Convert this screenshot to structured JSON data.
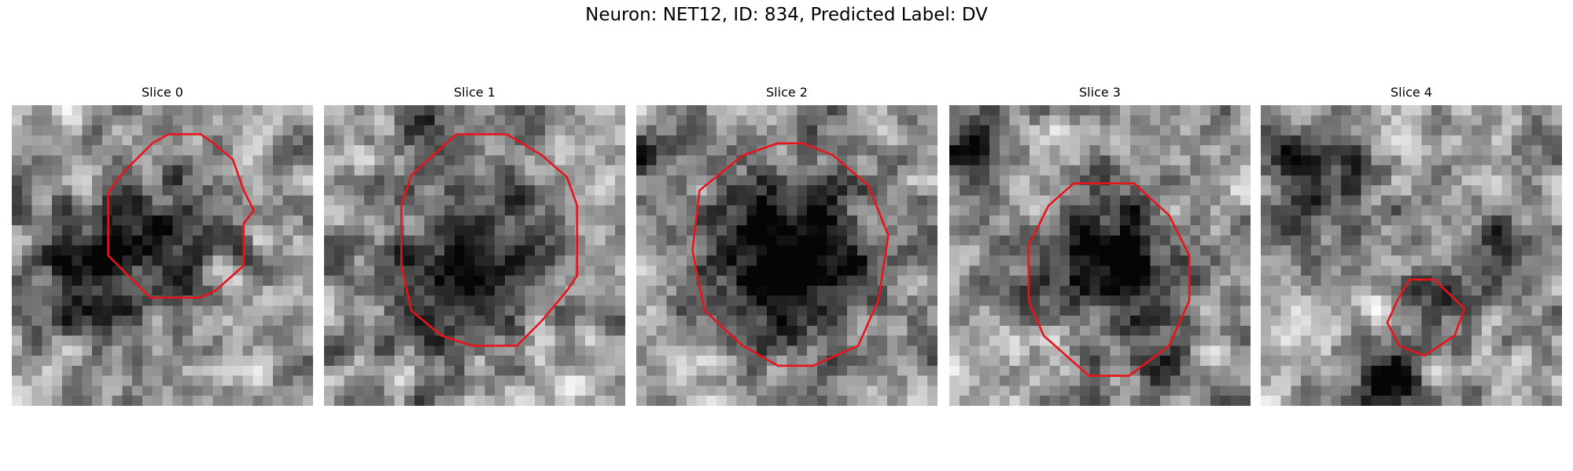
{
  "title": "Neuron: NET12, ID: 834, Predicted Label: DV",
  "panels": [
    {
      "title": "Slice 0"
    },
    {
      "title": "Slice 1"
    },
    {
      "title": "Slice 2"
    },
    {
      "title": "Slice 3"
    },
    {
      "title": "Slice 4"
    }
  ]
}
